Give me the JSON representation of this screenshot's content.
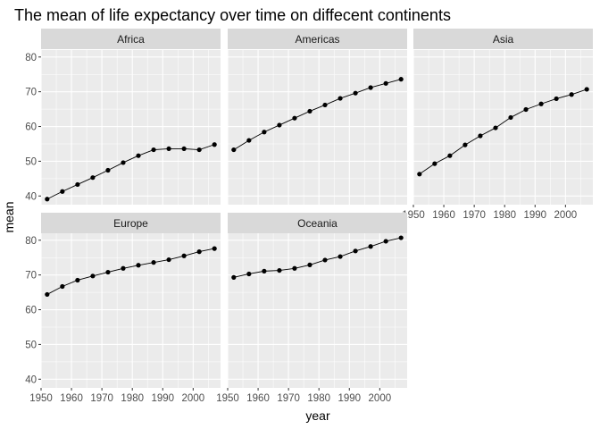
{
  "chart_data": {
    "type": "line",
    "title": "The mean of life expectancy over time on diffecent continents",
    "xlabel": "year",
    "ylabel": "mean",
    "xlim": [
      1950,
      2009
    ],
    "ylim": [
      37.5,
      82
    ],
    "x_ticks": [
      1950,
      1960,
      1970,
      1980,
      1990,
      2000
    ],
    "y_ticks": [
      40,
      50,
      60,
      70,
      80
    ],
    "grid": true,
    "legend": "none",
    "facet_columns": 3,
    "x": [
      1952,
      1957,
      1962,
      1967,
      1972,
      1977,
      1982,
      1987,
      1992,
      1997,
      2002,
      2007
    ],
    "series": [
      {
        "name": "Africa",
        "values": [
          39.1,
          41.3,
          43.3,
          45.3,
          47.4,
          49.6,
          51.6,
          53.3,
          53.6,
          53.6,
          53.3,
          54.8
        ]
      },
      {
        "name": "Americas",
        "values": [
          53.3,
          56.0,
          58.4,
          60.4,
          62.4,
          64.4,
          66.2,
          68.1,
          69.6,
          71.2,
          72.4,
          73.6
        ]
      },
      {
        "name": "Asia",
        "values": [
          46.3,
          49.3,
          51.6,
          54.7,
          57.3,
          59.6,
          62.6,
          64.9,
          66.5,
          68.0,
          69.2,
          70.7
        ]
      },
      {
        "name": "Europe",
        "values": [
          64.4,
          66.7,
          68.5,
          69.7,
          70.8,
          71.9,
          72.8,
          73.6,
          74.4,
          75.5,
          76.7,
          77.6
        ]
      },
      {
        "name": "Oceania",
        "values": [
          69.3,
          70.3,
          71.1,
          71.3,
          71.9,
          72.9,
          74.3,
          75.3,
          76.9,
          78.2,
          79.7,
          80.7
        ]
      }
    ]
  }
}
